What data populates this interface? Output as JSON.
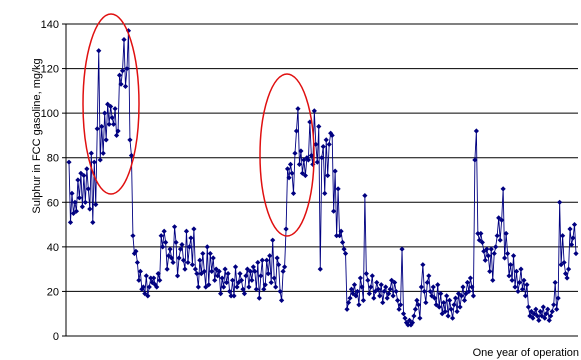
{
  "chart_data": {
    "type": "line",
    "title": "",
    "ylabel": "Sulphur in FCC gasoline, mg/kg",
    "xlabel": "One year of operation",
    "ylim": [
      0,
      140
    ],
    "yticks": [
      "0",
      "20",
      "40",
      "60",
      "80",
      "100",
      "120",
      "140"
    ],
    "yticks_values": [
      0,
      20,
      40,
      60,
      80,
      100,
      120,
      140
    ],
    "grid": "horizontal",
    "legend": "none",
    "series": [
      {
        "color": "#000080",
        "marker": "diamond",
        "values": [
          78,
          51,
          64,
          55,
          60,
          56,
          70,
          62,
          73,
          58,
          72,
          60,
          75,
          66,
          57,
          82,
          51,
          78,
          59,
          93,
          128,
          79,
          94,
          82,
          100,
          88,
          104,
          95,
          103,
          98,
          95,
          102,
          90,
          92,
          117,
          113,
          119,
          133,
          112,
          120,
          137,
          88,
          81,
          45,
          37,
          38,
          33,
          25,
          29,
          21,
          22,
          19,
          27,
          18,
          22,
          26,
          24,
          26,
          23,
          22,
          28,
          25,
          45,
          40,
          47,
          42,
          30,
          36,
          39,
          35,
          33,
          49,
          42,
          27,
          35,
          39,
          41,
          34,
          30,
          47,
          33,
          40,
          44,
          32,
          48,
          30,
          28,
          22,
          34,
          28,
          37,
          29,
          22,
          40,
          23,
          37,
          29,
          35,
          25,
          30,
          27,
          29,
          19,
          26,
          22,
          30,
          24,
          28,
          20,
          18,
          25,
          18,
          31,
          22,
          24,
          28,
          25,
          21,
          19,
          27,
          30,
          22,
          29,
          25,
          31,
          29,
          21,
          33,
          17,
          27,
          34,
          21,
          23,
          34,
          28,
          36,
          24,
          43,
          26,
          22,
          35,
          32,
          20,
          16,
          29,
          31,
          48,
          75,
          71,
          77,
          73,
          64,
          82,
          92,
          102,
          77,
          83,
          73,
          79,
          72,
          80,
          79,
          96,
          81,
          77,
          101,
          86,
          78,
          94,
          30,
          80,
          85,
          64,
          88,
          72,
          86,
          91,
          90,
          56,
          74,
          45,
          66,
          45,
          47,
          42,
          39,
          37,
          12,
          15,
          17,
          21,
          19,
          23,
          18,
          20,
          14,
          26,
          22,
          16,
          63,
          28,
          25,
          19,
          22,
          27,
          17,
          20,
          24,
          21,
          18,
          23,
          15,
          20,
          22,
          17,
          19,
          21,
          25,
          18,
          24,
          20,
          16,
          12,
          14,
          39,
          10,
          8,
          6,
          5,
          7,
          5,
          6,
          9,
          12,
          16,
          14,
          8,
          22,
          32,
          20,
          15,
          24,
          27,
          20,
          18,
          22,
          17,
          14,
          23,
          13,
          19,
          10,
          15,
          11,
          18,
          9,
          16,
          12,
          8,
          14,
          17,
          11,
          19,
          13,
          18,
          22,
          16,
          19,
          24,
          20,
          26,
          22,
          18,
          79,
          92,
          46,
          43,
          46,
          42,
          38,
          34,
          39,
          36,
          29,
          39,
          25,
          37,
          40,
          45,
          53,
          43,
          52,
          66,
          35,
          46,
          37,
          27,
          32,
          25,
          36,
          22,
          29,
          20,
          24,
          30,
          21,
          25,
          18,
          23,
          13,
          9,
          11,
          8,
          10,
          12,
          9,
          7,
          11,
          9,
          13,
          8,
          10,
          12,
          7,
          9,
          11,
          14,
          24,
          12,
          17,
          60,
          32,
          45,
          33,
          28,
          26,
          30,
          48,
          41,
          44,
          50,
          37
        ]
      }
    ]
  }
}
